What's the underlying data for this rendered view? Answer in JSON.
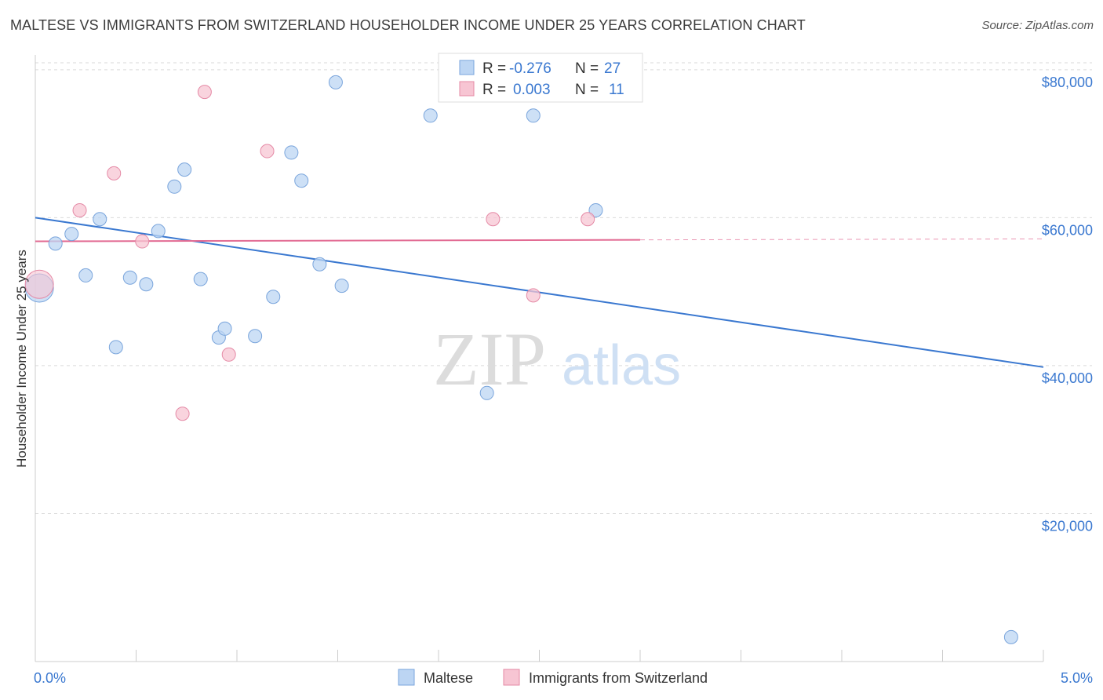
{
  "title": "MALTESE VS IMMIGRANTS FROM SWITZERLAND HOUSEHOLDER INCOME UNDER 25 YEARS CORRELATION CHART",
  "source": "Source: ZipAtlas.com",
  "watermark": {
    "zip": "ZIP",
    "atlas": "atlas"
  },
  "colors": {
    "maltese_fill": "#bcd5f3",
    "maltese_stroke": "#7aa5dc",
    "maltese_line": "#3a78d0",
    "swiss_fill": "#f7c5d3",
    "swiss_stroke": "#e58aa6",
    "swiss_line": "#e26b93",
    "tick_label": "#3a78d0",
    "grid": "#d9d9d9"
  },
  "legend_stats": {
    "r_label": "R =",
    "n_label": "N =",
    "rows": [
      {
        "r": "-0.276",
        "n": "27"
      },
      {
        "r": "0.003",
        "n": "11"
      }
    ]
  },
  "chart_data": {
    "type": "scatter",
    "xlabel": "",
    "ylabel": "Householder Income Under 25 years",
    "xlim": [
      0,
      5
    ],
    "ylim": [
      0,
      82000
    ],
    "x_tick_labels": [
      "0.0%",
      "5.0%"
    ],
    "y_ticks": [
      20000,
      40000,
      60000,
      80000
    ],
    "y_tick_labels": [
      "$20,000",
      "$40,000",
      "$60,000",
      "$80,000"
    ],
    "grid": "horizontal dashed",
    "legend_placement": "bottom-center",
    "series": [
      {
        "name": "Maltese",
        "points": [
          [
            0.02,
            50500
          ],
          [
            0.1,
            56500
          ],
          [
            0.18,
            57800
          ],
          [
            0.25,
            52200
          ],
          [
            0.32,
            59800
          ],
          [
            0.4,
            42500
          ],
          [
            0.47,
            51900
          ],
          [
            0.55,
            51000
          ],
          [
            0.61,
            58200
          ],
          [
            0.69,
            64200
          ],
          [
            0.74,
            66500
          ],
          [
            0.82,
            51700
          ],
          [
            0.91,
            43800
          ],
          [
            0.94,
            45000
          ],
          [
            1.09,
            44000
          ],
          [
            1.18,
            49300
          ],
          [
            1.27,
            68800
          ],
          [
            1.32,
            65000
          ],
          [
            1.41,
            53700
          ],
          [
            1.49,
            78300
          ],
          [
            1.52,
            50800
          ],
          [
            1.96,
            73800
          ],
          [
            2.24,
            36300
          ],
          [
            2.38,
            78300
          ],
          [
            2.47,
            73800
          ],
          [
            2.78,
            61000
          ],
          [
            4.84,
            3300
          ]
        ],
        "trend": {
          "x": [
            0,
            5
          ],
          "y": [
            60000,
            39800
          ],
          "dashed_to": 5
        }
      },
      {
        "name": "Immigrants from Switzerland",
        "points": [
          [
            0.02,
            51000
          ],
          [
            0.22,
            61000
          ],
          [
            0.39,
            66000
          ],
          [
            0.53,
            56800
          ],
          [
            0.84,
            77000
          ],
          [
            0.96,
            41500
          ],
          [
            1.15,
            69000
          ],
          [
            0.73,
            33500
          ],
          [
            2.27,
            59800
          ],
          [
            2.47,
            49500
          ],
          [
            2.74,
            59800
          ]
        ],
        "trend": {
          "x": [
            0,
            3
          ],
          "y": [
            56800,
            57000
          ],
          "dashed_to": 5
        }
      }
    ]
  }
}
